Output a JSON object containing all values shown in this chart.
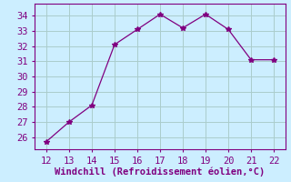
{
  "x": [
    12,
    13,
    14,
    15,
    16,
    17,
    18,
    19,
    20,
    21,
    22
  ],
  "y": [
    25.7,
    27.0,
    28.1,
    32.1,
    33.1,
    34.1,
    33.2,
    34.1,
    33.1,
    31.1,
    31.1
  ],
  "line_color": "#800080",
  "marker": "*",
  "marker_size": 4,
  "xlabel": "Windchill (Refroidissement éolien,°C)",
  "xlabel_fontsize": 7.5,
  "xlim": [
    11.5,
    22.5
  ],
  "ylim": [
    25.2,
    34.8
  ],
  "xticks": [
    12,
    13,
    14,
    15,
    16,
    17,
    18,
    19,
    20,
    21,
    22
  ],
  "yticks": [
    26,
    27,
    28,
    29,
    30,
    31,
    32,
    33,
    34
  ],
  "background_color": "#cceeff",
  "grid_color": "#aacccc",
  "tick_color": "#800080",
  "tick_fontsize": 7.5,
  "spine_color": "#800080",
  "font_family": "monospace"
}
